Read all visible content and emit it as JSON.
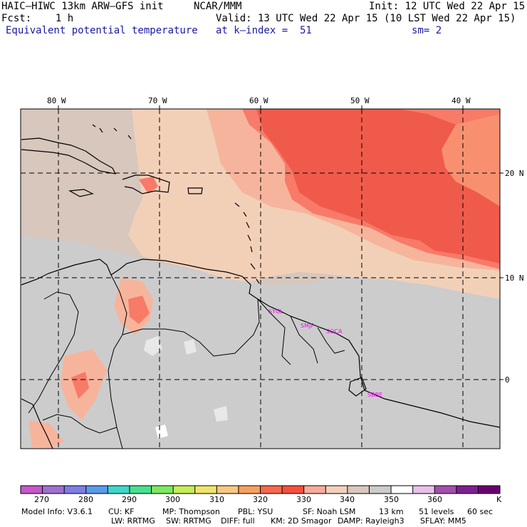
{
  "header": {
    "model": "HAIC–HIWC 13km ARW–GFS init",
    "org": "NCAR/MMM",
    "init": "Init: 12 UTC Wed 22 Apr 15",
    "fcst": "Fcst:    1 h",
    "valid": "Valid: 13 UTC Wed 22 Apr 15 (10 LST Wed 22 Apr 15)",
    "field": "Equivalent potential temperature",
    "level": "at k–index =  51",
    "smooth": "sm= 2"
  },
  "map": {
    "lon_labels": [
      "80 W",
      "70 W",
      "60 W",
      "50 W",
      "40 W"
    ],
    "lat_labels": [
      "20 N",
      "10 N",
      "0"
    ],
    "stations": [
      "SYGL",
      "SMJP",
      "SOCA",
      "SBBE"
    ],
    "colors": {
      "dark_red": "#f05a4b",
      "red": "#f87a68",
      "orange": "#f89070",
      "salmon": "#f7b49c",
      "peach": "#f2d0b8",
      "tan": "#d7c7bd",
      "gray": "#cccccc",
      "light": "#e8e8e8",
      "white": "#ffffff",
      "station": "#ff00ff"
    }
  },
  "colorbar": {
    "labels": [
      "270",
      "280",
      "290",
      "300",
      "310",
      "320",
      "330",
      "340",
      "350",
      "360"
    ],
    "unit": "K",
    "colors": [
      "#c457c9",
      "#a070cf",
      "#7f7ee6",
      "#5b9be8",
      "#3fd7c8",
      "#48e08e",
      "#7de860",
      "#c5ec5a",
      "#efe46b",
      "#f8c882",
      "#f6a060",
      "#f7684e",
      "#f5503f",
      "#f7ab9a",
      "#f1d1bc",
      "#d9c8bd",
      "#cccccc",
      "#ffffff",
      "#e8c1ea",
      "#a34fae",
      "#7c2091",
      "#6a0070"
    ]
  },
  "footer": {
    "line1": [
      "Model Info: V3.6.1",
      "CU: KF",
      "MP: Thompson",
      "PBL: YSU",
      "SF: Noah LSM",
      "13 km",
      "51 levels",
      "60 sec"
    ],
    "line2": [
      "LW: RRTMG",
      "SW: RRTMG",
      "DIFF: full",
      "KM: 2D Smagor",
      "DAMP: Rayleigh3",
      "SFLAY: MM5"
    ]
  }
}
